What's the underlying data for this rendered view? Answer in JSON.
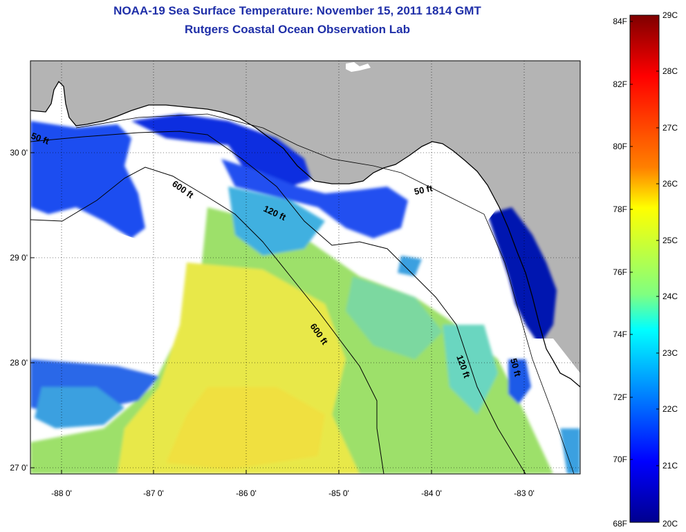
{
  "header": {
    "title": "NOAA-19 Sea Surface Temperature:  November 15, 2011 1814 GMT",
    "subtitle": "Rutgers Coastal Ocean Observation Lab"
  },
  "map": {
    "lon_ticks": [
      "-88 0'",
      "-87 0'",
      "-86 0'",
      "-85 0'",
      "-84 0'",
      "-83 0'"
    ],
    "lat_ticks": [
      "30 0'",
      "29 0'",
      "28 0'",
      "27 0'"
    ],
    "contours": [
      "50 ft",
      "600 ft",
      "120 ft",
      "50 ft",
      "600 ft",
      "120 ft",
      "50 ft"
    ],
    "colors": {
      "land": "#b4b4b4",
      "nodata": "#ffffff",
      "coastline": "#000000"
    }
  },
  "colorbar": {
    "fahrenheit_labels": [
      "84F",
      "82F",
      "80F",
      "78F",
      "76F",
      "74F",
      "72F",
      "70F",
      "68F"
    ],
    "celsius_labels": [
      "29C",
      "28C",
      "27C",
      "26C",
      "25C",
      "24C",
      "23C",
      "22C",
      "21C",
      "20C"
    ],
    "colors": [
      "#7f0000",
      "#ff0000",
      "#ff8000",
      "#ffff00",
      "#80ff80",
      "#00ffff",
      "#0080ff",
      "#0000ff",
      "#00008f"
    ]
  }
}
